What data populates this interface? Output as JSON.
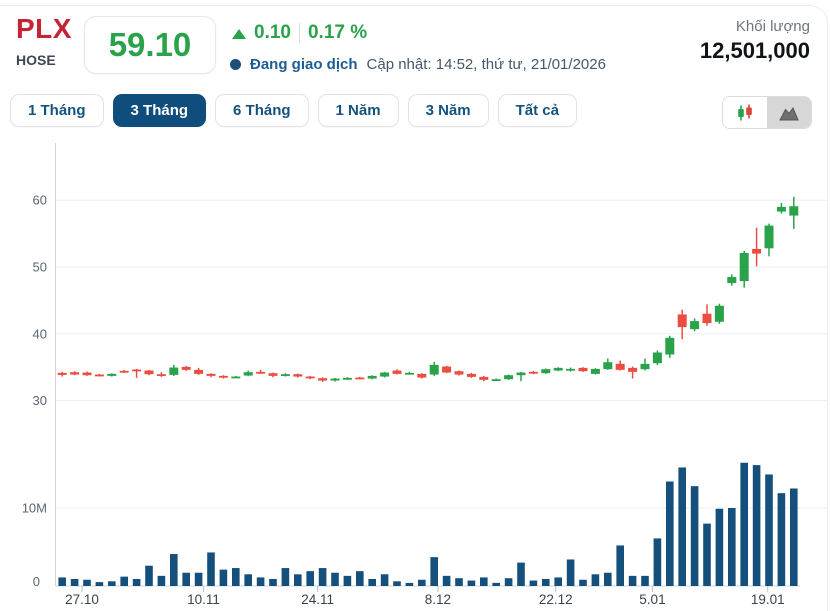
{
  "header": {
    "symbol": "PLX",
    "exchange": "HOSE",
    "price": "59.10",
    "change_value": "0.10",
    "change_percent": "0.17 %",
    "change_direction": "up",
    "status_label": "Đang giao dịch",
    "updated_label": "Cập nhật: 14:52, thứ tư, 21/01/2026",
    "volume_label": "Khối lượng",
    "volume_value": "12,501,000"
  },
  "toolbar": {
    "range_tabs": [
      {
        "label": "1 Tháng",
        "active": false
      },
      {
        "label": "3 Tháng",
        "active": true
      },
      {
        "label": "6 Tháng",
        "active": false
      },
      {
        "label": "1 Năm",
        "active": false
      },
      {
        "label": "3 Năm",
        "active": false
      },
      {
        "label": "Tất cả",
        "active": false
      }
    ],
    "chart_type_toggle": [
      {
        "name": "candlestick",
        "active": true
      },
      {
        "name": "area",
        "active": false
      }
    ]
  },
  "colors": {
    "up_green": "#2aa24a",
    "down_red": "#ec4d41",
    "volume_navy": "#15507c",
    "accent_navy": "#0f4d7c",
    "symbol_red": "#c52532",
    "grid": "#ededed",
    "axis": "#cfd4d9"
  },
  "chart_data": {
    "type": "candlestick_with_volume",
    "title": "PLX 3-month price and volume",
    "price_axis": {
      "ticks": [
        30,
        40,
        50,
        60
      ],
      "unit": "thousand VND"
    },
    "volume_axis": {
      "ticks": [
        {
          "label": "0",
          "value": 0
        },
        {
          "label": "10M",
          "value": 10
        }
      ],
      "unit": "shares (millions)"
    },
    "x_ticks": [
      {
        "label": "27.10",
        "i": 1.6
      },
      {
        "label": "10.11",
        "i": 11.4
      },
      {
        "label": "24.11",
        "i": 20.6
      },
      {
        "label": "8.12",
        "i": 30.3
      },
      {
        "label": "22.12",
        "i": 39.8
      },
      {
        "label": "5.01",
        "i": 47.6
      },
      {
        "label": "19.01",
        "i": 56.9
      }
    ],
    "candle_format": [
      "open",
      "high",
      "low",
      "close",
      "volume_millions"
    ],
    "candles": [
      [
        34.15,
        34.3,
        33.6,
        33.85,
        1.1
      ],
      [
        34.25,
        34.4,
        33.8,
        33.9,
        0.9
      ],
      [
        34.2,
        34.35,
        33.7,
        33.8,
        0.8
      ],
      [
        33.9,
        34.0,
        33.6,
        33.75,
        0.5
      ],
      [
        33.7,
        34.1,
        33.6,
        34.0,
        0.6
      ],
      [
        34.45,
        34.6,
        34.15,
        34.3,
        1.2
      ],
      [
        34.65,
        34.75,
        33.4,
        34.5,
        0.9
      ],
      [
        34.5,
        34.6,
        33.8,
        33.95,
        2.6
      ],
      [
        33.95,
        34.25,
        33.55,
        33.85,
        1.3
      ],
      [
        33.85,
        35.35,
        33.7,
        34.95,
        4.1
      ],
      [
        35.05,
        35.2,
        34.45,
        34.6,
        1.7
      ],
      [
        34.6,
        34.9,
        33.85,
        34.0,
        1.7
      ],
      [
        34.0,
        34.1,
        33.5,
        33.7,
        4.3
      ],
      [
        33.7,
        33.8,
        33.3,
        33.5,
        2.1
      ],
      [
        33.5,
        33.7,
        33.4,
        33.6,
        2.3
      ],
      [
        33.75,
        34.5,
        33.65,
        34.25,
        1.5
      ],
      [
        34.3,
        34.6,
        34.0,
        34.1,
        1.1
      ],
      [
        34.1,
        34.2,
        33.5,
        33.7,
        0.9
      ],
      [
        33.7,
        34.1,
        33.6,
        33.95,
        2.3
      ],
      [
        33.95,
        34.05,
        33.45,
        33.6,
        1.5
      ],
      [
        33.6,
        33.7,
        33.2,
        33.35,
        1.9
      ],
      [
        33.35,
        33.5,
        32.8,
        33.0,
        2.3
      ],
      [
        33.0,
        33.4,
        32.85,
        33.3,
        1.7
      ],
      [
        33.3,
        33.5,
        33.1,
        33.4,
        1.3
      ],
      [
        33.45,
        33.55,
        33.2,
        33.3,
        1.9
      ],
      [
        33.3,
        33.8,
        33.2,
        33.7,
        0.9
      ],
      [
        33.6,
        34.3,
        33.45,
        34.2,
        1.5
      ],
      [
        34.5,
        34.7,
        33.9,
        34.0,
        0.6
      ],
      [
        34.0,
        34.3,
        33.9,
        34.15,
        0.4
      ],
      [
        34.0,
        34.1,
        33.3,
        33.45,
        0.8
      ],
      [
        33.9,
        35.8,
        33.7,
        35.35,
        3.7
      ],
      [
        35.1,
        35.2,
        34.1,
        34.2,
        1.3
      ],
      [
        34.4,
        34.5,
        33.75,
        33.9,
        1.0
      ],
      [
        34.0,
        34.15,
        33.4,
        33.55,
        0.7
      ],
      [
        33.55,
        33.7,
        32.9,
        33.1,
        1.1
      ],
      [
        33.1,
        33.3,
        32.95,
        33.2,
        0.4
      ],
      [
        33.2,
        33.9,
        33.1,
        33.8,
        1.0
      ],
      [
        33.8,
        34.3,
        32.9,
        34.2,
        3.0
      ],
      [
        34.3,
        34.45,
        33.95,
        34.1,
        0.7
      ],
      [
        34.1,
        34.8,
        34.0,
        34.7,
        0.9
      ],
      [
        34.5,
        35.0,
        34.4,
        34.9,
        1.1
      ],
      [
        34.65,
        34.95,
        34.35,
        34.75,
        3.4
      ],
      [
        34.9,
        35.0,
        34.3,
        34.4,
        0.8
      ],
      [
        34.0,
        34.85,
        33.9,
        34.75,
        1.5
      ],
      [
        34.7,
        36.3,
        34.6,
        35.75,
        1.7
      ],
      [
        35.5,
        36.0,
        34.5,
        34.6,
        5.2
      ],
      [
        34.9,
        35.1,
        33.3,
        34.3,
        1.3
      ],
      [
        34.7,
        36.3,
        34.5,
        35.5,
        1.3
      ],
      [
        35.6,
        37.5,
        35.3,
        37.2,
        6.1
      ],
      [
        36.9,
        39.7,
        36.4,
        39.4,
        13.4
      ],
      [
        42.9,
        43.6,
        39.2,
        41.0,
        15.2
      ],
      [
        40.7,
        42.3,
        40.4,
        41.9,
        12.8
      ],
      [
        43.0,
        44.4,
        41.2,
        41.6,
        8.0
      ],
      [
        41.8,
        44.5,
        41.5,
        44.2,
        9.9
      ],
      [
        47.6,
        48.9,
        47.2,
        48.5,
        10.0
      ],
      [
        47.9,
        52.4,
        46.9,
        52.1,
        15.8
      ],
      [
        52.7,
        55.9,
        50.1,
        52.0,
        15.5
      ],
      [
        52.8,
        56.5,
        51.6,
        56.2,
        14.3
      ],
      [
        58.3,
        59.6,
        58.0,
        59.0,
        11.9
      ],
      [
        57.7,
        60.5,
        55.7,
        59.1,
        12.5
      ]
    ]
  }
}
